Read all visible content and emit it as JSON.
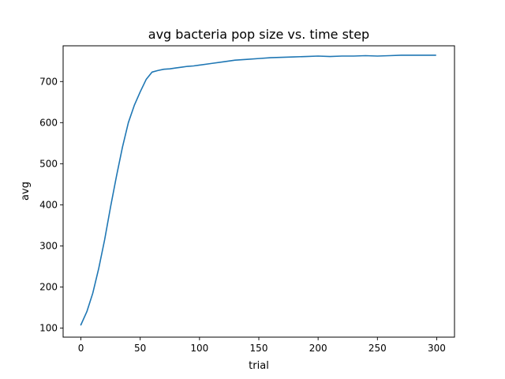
{
  "chart_data": {
    "type": "line",
    "title": "avg bacteria pop size vs. time step",
    "xlabel": "trial",
    "ylabel": "avg",
    "xlim": [
      -15,
      315
    ],
    "ylim": [
      78,
      787
    ],
    "x_ticks": [
      0,
      50,
      100,
      150,
      200,
      250,
      300
    ],
    "y_ticks": [
      100,
      200,
      300,
      400,
      500,
      600,
      700
    ],
    "grid": false,
    "legend": "none",
    "line_color": "#1f77b4",
    "series": [
      {
        "x": [
          0,
          5,
          10,
          15,
          20,
          25,
          30,
          35,
          40,
          45,
          50,
          55,
          60,
          65,
          70,
          75,
          80,
          85,
          90,
          95,
          100,
          110,
          120,
          130,
          140,
          150,
          160,
          170,
          180,
          190,
          200,
          210,
          220,
          230,
          240,
          250,
          260,
          270,
          280,
          290,
          299
        ],
        "values": [
          108,
          140,
          185,
          245,
          315,
          395,
          470,
          540,
          600,
          642,
          675,
          705,
          723,
          727,
          730,
          731,
          733,
          735,
          737,
          738,
          740,
          744,
          748,
          752,
          754,
          756,
          758,
          759,
          760,
          761,
          762,
          761,
          762,
          762,
          763,
          762,
          763,
          764,
          764,
          764,
          764
        ]
      }
    ]
  }
}
